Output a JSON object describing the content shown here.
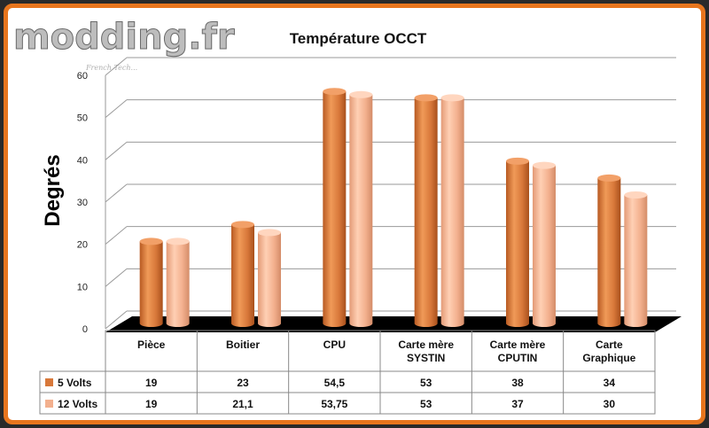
{
  "logo": {
    "text": "modding.fr",
    "tagline": "French Tech..."
  },
  "colors": {
    "accent_border": "#e8761e",
    "series1": "#d8783a",
    "series2": "#f3b08e",
    "floor": "#000000"
  },
  "chart_data": {
    "type": "bar",
    "title": "Température OCCT",
    "xlabel": "",
    "ylabel": "Degrés",
    "ylim": [
      0,
      60
    ],
    "yticks": [
      "0",
      "10",
      "20",
      "30",
      "40",
      "50",
      "60"
    ],
    "grid": true,
    "categories": [
      "Pièce",
      "Boitier",
      "CPU",
      "Carte mère SYSTIN",
      "Carte mère CPUTIN",
      "Carte Graphique"
    ],
    "category_lines": [
      [
        "Pièce"
      ],
      [
        "Boitier"
      ],
      [
        "CPU"
      ],
      [
        "Carte mère",
        "SYSTIN"
      ],
      [
        "Carte mère",
        "CPUTIN"
      ],
      [
        "Carte",
        "Graphique"
      ]
    ],
    "series": [
      {
        "name": "5 Volts",
        "values": [
          19,
          23,
          54.5,
          53,
          38,
          34
        ],
        "labels": [
          "19",
          "23",
          "54,5",
          "53",
          "38",
          "34"
        ]
      },
      {
        "name": "12 Volts",
        "values": [
          19,
          21.1,
          53.75,
          53,
          37,
          30
        ],
        "labels": [
          "19",
          "21,1",
          "53,75",
          "53",
          "37",
          "30"
        ]
      }
    ]
  }
}
